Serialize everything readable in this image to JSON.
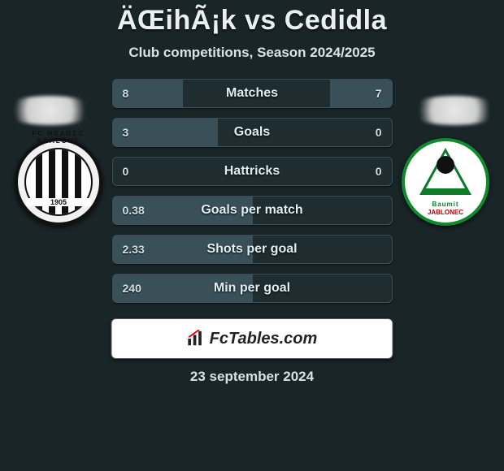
{
  "title": "ÄŒihÃ¡k vs Cedidla",
  "subtitle": "Club competitions, Season 2024/2025",
  "date": "23 september 2024",
  "stat_bar": {
    "bg": "#1f2d31",
    "fill": "#3a5058",
    "border": "#3a5058",
    "text": "#cfe0e4",
    "label": "#dff0f4"
  },
  "rows": [
    {
      "label": "Matches",
      "left": "8",
      "right": "7",
      "left_pct": 50,
      "right_pct": 44
    },
    {
      "label": "Goals",
      "left": "3",
      "right": "0",
      "left_pct": 75,
      "right_pct": 0
    },
    {
      "label": "Hattricks",
      "left": "0",
      "right": "0",
      "left_pct": 0,
      "right_pct": 0
    },
    {
      "label": "Goals per match",
      "left": "0.38",
      "right": "",
      "left_pct": 100,
      "right_pct": 0
    },
    {
      "label": "Shots per goal",
      "left": "2.33",
      "right": "",
      "left_pct": 100,
      "right_pct": 0
    },
    {
      "label": "Min per goal",
      "left": "240",
      "right": "",
      "left_pct": 100,
      "right_pct": 0
    }
  ],
  "brand": {
    "name": "FcTables.com"
  },
  "club_left": {
    "arc": "FC HRADEC KRÁLOVÉ",
    "year": "1905"
  },
  "club_right": {
    "top": "Baumit",
    "bottom": "JABLONEC"
  }
}
